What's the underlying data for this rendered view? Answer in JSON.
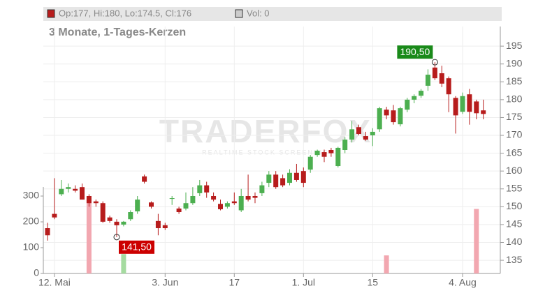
{
  "chart_data": {
    "type": "candlestick",
    "legend": {
      "ohlc": "Op:177, Hi:180, Lo:174.5, Cl:176",
      "volume": "Vol: 0"
    },
    "subtitle": "3 Monate, 1-Tages-Kerzen",
    "watermark": {
      "brand": "TRADERFOX",
      "tagline": "REALTIME STOCK SCREENING"
    },
    "categories": [
      null,
      "12. Mai",
      null,
      null,
      null,
      null,
      null,
      null,
      null,
      null,
      null,
      null,
      null,
      null,
      null,
      null,
      null,
      "3. Jun",
      null,
      null,
      null,
      null,
      null,
      null,
      null,
      null,
      null,
      "17",
      null,
      null,
      null,
      null,
      null,
      null,
      null,
      null,
      null,
      "1. Jul",
      null,
      null,
      null,
      null,
      null,
      null,
      null,
      null,
      null,
      "15",
      null,
      null,
      null,
      null,
      null,
      null,
      null,
      null,
      null,
      null,
      null,
      null,
      "4. Aug",
      null,
      null,
      null
    ],
    "open": [
      144,
      148,
      153.5,
      155,
      155,
      155.5,
      153,
      151.5,
      151,
      147,
      145.8,
      145,
      146.5,
      148.7,
      158.5,
      151.2,
      146,
      144.8,
      152.2,
      149.5,
      149.5,
      151,
      153.8,
      156,
      153,
      150.8,
      150,
      151.5,
      149,
      153,
      153,
      153.8,
      156.7,
      159,
      158,
      156.7,
      159.5,
      160,
      160.4,
      164.5,
      165.3,
      165.9,
      161.4,
      165.9,
      168.8,
      172.3,
      169.8,
      170,
      171.7,
      177.2,
      177,
      173.1,
      177.2,
      180,
      181.1,
      183.9,
      189,
      187.4,
      186,
      180.5,
      176.6,
      181.5,
      179.5,
      177
    ],
    "high": [
      145.5,
      158,
      157.5,
      156.5,
      156,
      156.5,
      153.5,
      152,
      151.5,
      147.5,
      146.5,
      146,
      149,
      153,
      159,
      151.5,
      148,
      145.5,
      153,
      150,
      154,
      155.5,
      157.5,
      157,
      154,
      152,
      151.5,
      154,
      155,
      159,
      154,
      157,
      160,
      160,
      159,
      160.5,
      162,
      161,
      164.5,
      166,
      166,
      166.5,
      166.8,
      169.5,
      174,
      173,
      171,
      172,
      178,
      178,
      178.5,
      178,
      180.5,
      181.5,
      183,
      188.5,
      190.5,
      189.5,
      186.5,
      181,
      182,
      183,
      180,
      180
    ],
    "low": [
      140.5,
      146.5,
      153,
      154,
      154,
      152,
      150,
      150,
      145.5,
      145.5,
      141.5,
      144.5,
      146,
      148,
      156.5,
      149.5,
      142,
      143.5,
      150.5,
      148,
      149,
      150.5,
      153,
      152.5,
      151.5,
      149,
      149.5,
      150.5,
      148.5,
      151.5,
      151,
      153,
      155.5,
      155,
      155.5,
      156,
      157,
      155.5,
      159.5,
      164,
      162.5,
      164,
      161,
      165,
      168,
      170,
      168.5,
      167,
      171,
      174.5,
      173,
      172.5,
      176.5,
      179,
      180.5,
      182.5,
      185.5,
      183.5,
      176.5,
      170.5,
      176,
      173,
      174.5,
      174.5
    ],
    "close": [
      142,
      147,
      155,
      155.5,
      154.5,
      152,
      151,
      151,
      145.8,
      146,
      144.8,
      145.8,
      148.5,
      152,
      157,
      150,
      144,
      144,
      152.4,
      148.5,
      151,
      153,
      156,
      154,
      152,
      149.3,
      151,
      151,
      153,
      152,
      152.5,
      156,
      159,
      155.5,
      156,
      159.5,
      157.5,
      156.7,
      164,
      165.7,
      164,
      165,
      166.5,
      168.8,
      171.7,
      170.4,
      168.8,
      171,
      177.6,
      175.6,
      173.7,
      177.6,
      180,
      181,
      182.5,
      187,
      186,
      184.5,
      181.5,
      175.6,
      181,
      176.6,
      176.2,
      176
    ],
    "volume": [
      0,
      0,
      0,
      0,
      0,
      0,
      290,
      0,
      0,
      0,
      0,
      75,
      0,
      0,
      0,
      0,
      0,
      0,
      0,
      0,
      0,
      0,
      0,
      0,
      0,
      0,
      0,
      0,
      0,
      0,
      0,
      0,
      0,
      0,
      0,
      0,
      0,
      0,
      0,
      0,
      0,
      0,
      0,
      0,
      0,
      0,
      0,
      0,
      0,
      70,
      0,
      0,
      0,
      0,
      0,
      0,
      0,
      0,
      0,
      0,
      0,
      0,
      250,
      0
    ],
    "up_color": "#4caf50",
    "down_color": "#b71c1c",
    "volume_up_color": "#a5dba0",
    "volume_down_color": "#f2a7b0",
    "ylim": [
      131.3,
      200.5
    ],
    "yticks": [
      135,
      140,
      145,
      150,
      155,
      160,
      165,
      170,
      175,
      180,
      185,
      190,
      195
    ],
    "y2lim": [
      0,
      957
    ],
    "y2ticks": [
      0,
      100,
      200,
      300
    ],
    "annotations": [
      {
        "index": 56,
        "value": 190.5,
        "label": "190,50",
        "color": "#1a8a1a"
      },
      {
        "index": 10,
        "value": 141.5,
        "label": "141,50",
        "color": "#cc0000"
      }
    ],
    "grid": true
  }
}
